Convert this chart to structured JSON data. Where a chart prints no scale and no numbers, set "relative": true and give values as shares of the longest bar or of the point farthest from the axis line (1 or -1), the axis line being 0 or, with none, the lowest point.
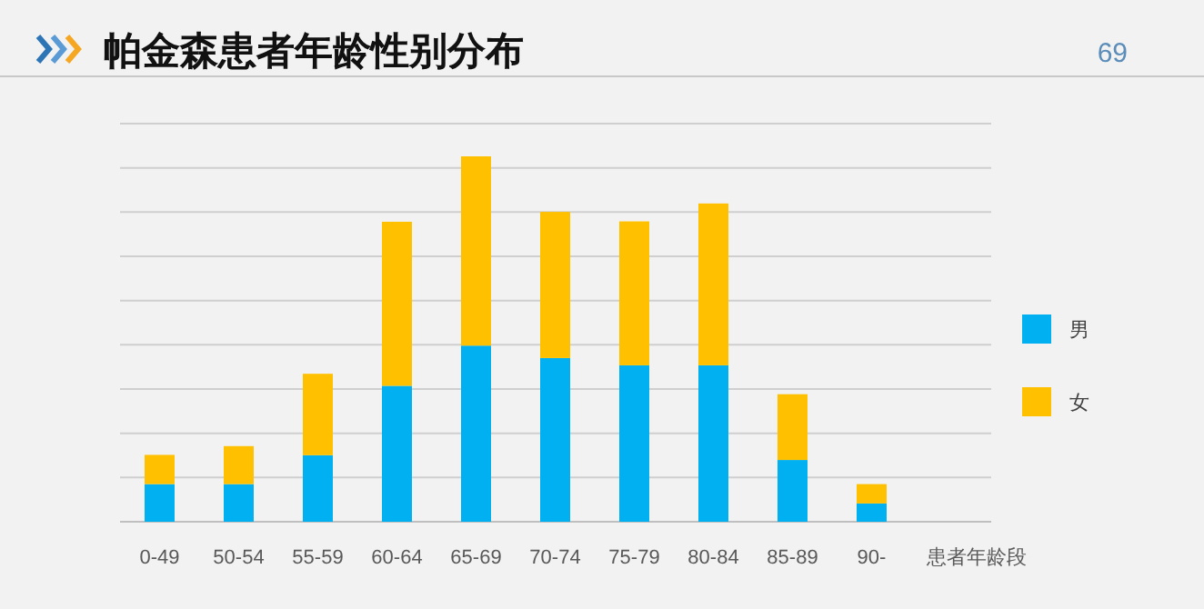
{
  "chart_data": {
    "type": "bar",
    "title": "帕金森患者年龄性别分布",
    "xlabel": "患者年龄段",
    "annotations": [
      "69"
    ],
    "categories": [
      "0-49",
      "50-54",
      "55-59",
      "60-64",
      "65-69",
      "70-74",
      "75-79",
      "80-84",
      "85-89",
      "90-"
    ],
    "stacked": true,
    "relative": true,
    "grid": "y",
    "legend": "right",
    "series": [
      {
        "name": "男",
        "color": "#00b0f0",
        "values": [
          0.103,
          0.103,
          0.182,
          0.372,
          0.482,
          0.448,
          0.428,
          0.428,
          0.169,
          0.05
        ]
      },
      {
        "name": "女",
        "color": "#ffc000",
        "values": [
          0.08,
          0.104,
          0.223,
          0.449,
          0.518,
          0.4,
          0.394,
          0.443,
          0.18,
          0.053
        ]
      }
    ]
  }
}
